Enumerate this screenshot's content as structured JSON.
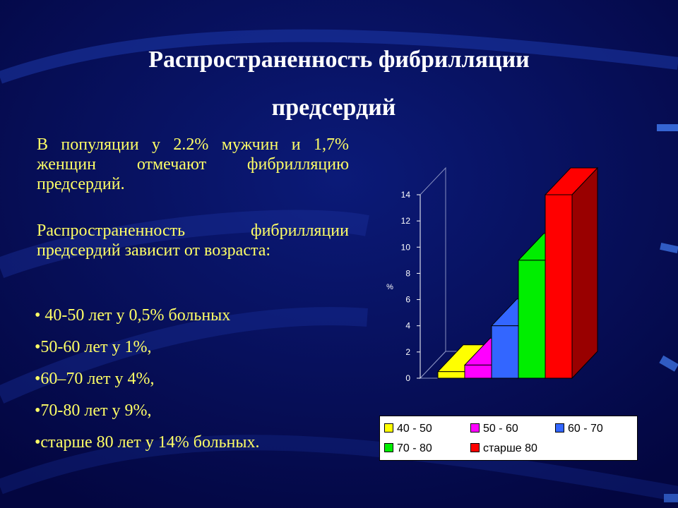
{
  "slide": {
    "title_line1": "Распространенность фибрилляции",
    "title_line2": "предсердий",
    "paragraph1": "В популяции у 2.2% мужчин и 1,7% женщин отмечают фибрилляцию предсердий.",
    "paragraph2": "Распространенность фибрилляции предсердий зависит от возраста:",
    "bullets": [
      " 40-50 лет у 0,5% больных",
      "50-60 лет  у 1%,",
      "60–70 лет  у 4%,",
      "70-80 лет  у 9%,",
      "старше 80 лет у 14% больных."
    ],
    "bullet_mark": "•",
    "colors": {
      "background": "#050a50",
      "title": "#ffffff",
      "body_text": "#ffff66"
    }
  },
  "chart_data": {
    "type": "bar",
    "categories": [
      "40 - 50",
      "50 - 60",
      "60 - 70",
      "70 - 80",
      "старше 80"
    ],
    "values": [
      0.5,
      1,
      4,
      9,
      14
    ],
    "colors": [
      "#ffff00",
      "#ff00ff",
      "#3366ff",
      "#00ee00",
      "#ff0000"
    ],
    "side_colors": [
      "#b3b300",
      "#990099",
      "#1f3d99",
      "#008800",
      "#990000"
    ],
    "ylabel": "%",
    "yticks": [
      "0",
      "2",
      "4",
      "6",
      "8",
      "10",
      "12",
      "14"
    ],
    "ylim": [
      0,
      14
    ],
    "three_d": true,
    "legend": {
      "position": "bottom",
      "entries": [
        "40 - 50",
        "50 - 60",
        "60 - 70",
        "70 - 80",
        "старше 80"
      ]
    }
  }
}
